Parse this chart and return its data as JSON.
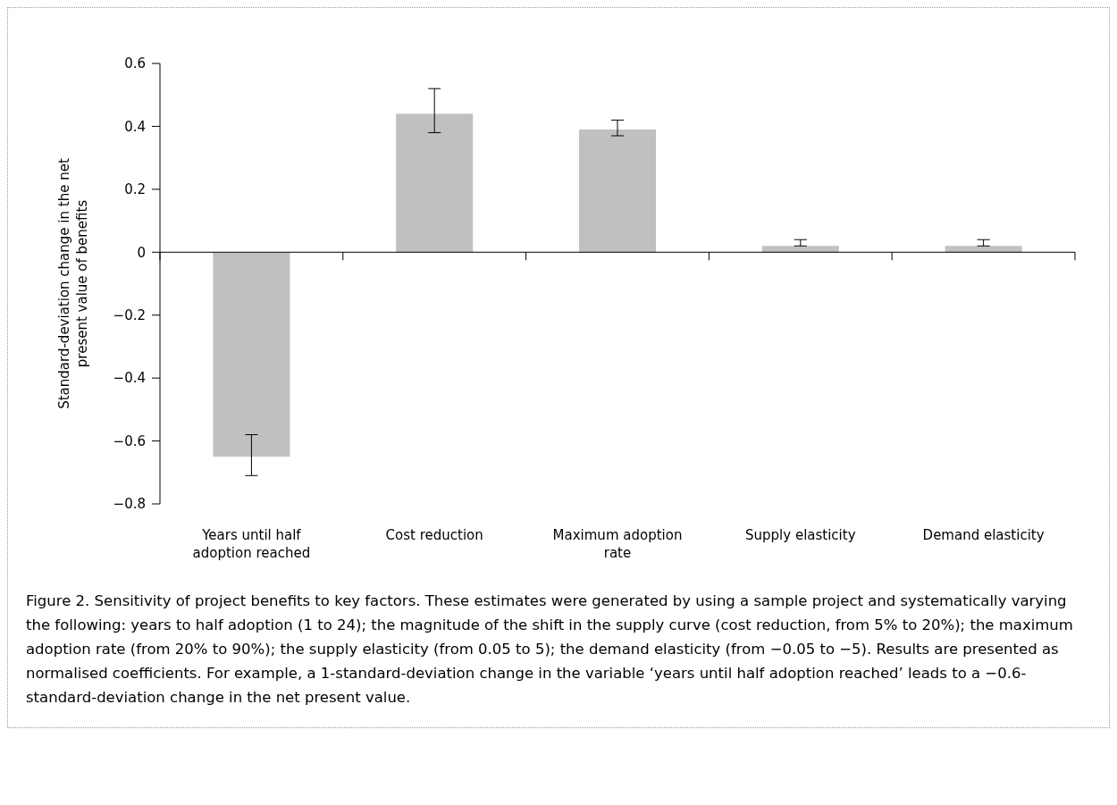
{
  "chart_data": {
    "type": "bar",
    "ylabel": "Standard-deviation change in the net present value of benefits",
    "categories": [
      "Years until half adoption reached",
      "Cost reduction",
      "Maximum adoption rate",
      "Supply elasticity",
      "Demand elasticity"
    ],
    "values": [
      -0.65,
      0.44,
      0.39,
      0.02,
      0.02
    ],
    "errors": [
      [
        -0.71,
        -0.58
      ],
      [
        0.38,
        0.52
      ],
      [
        0.37,
        0.42
      ],
      [
        0.02,
        0.04
      ],
      [
        0.02,
        0.04
      ]
    ],
    "color": "#c0c0c0",
    "ylim": [
      -0.8,
      0.6
    ],
    "yticks": [
      {
        "value": -0.8,
        "label": "−0.8"
      },
      {
        "value": -0.6,
        "label": "−0.6"
      },
      {
        "value": -0.4,
        "label": "−0.4"
      },
      {
        "value": -0.2,
        "label": "−0.2"
      },
      0,
      0.2,
      0.4,
      0.6
    ],
    "annotations": [
      "Figure 2.  Sensitivity of project benefits to key factors. These estimates were generated by using a sample project and systematically varying the following: years to half adoption (1 to 24); the magnitude of the shift in the supply curve (cost reduction, from 5% to 20%); the maximum adoption rate (from 20% to 90%); the supply elasticity (from 0.05 to 5); the demand elasticity (from −0.05 to −5). Results are presented as normalised coefficients. For example, a 1-standard-deviation change in the variable ‘years until half adoption reached’ leads to a −0.6-standard-deviation change in the net present value."
    ]
  }
}
